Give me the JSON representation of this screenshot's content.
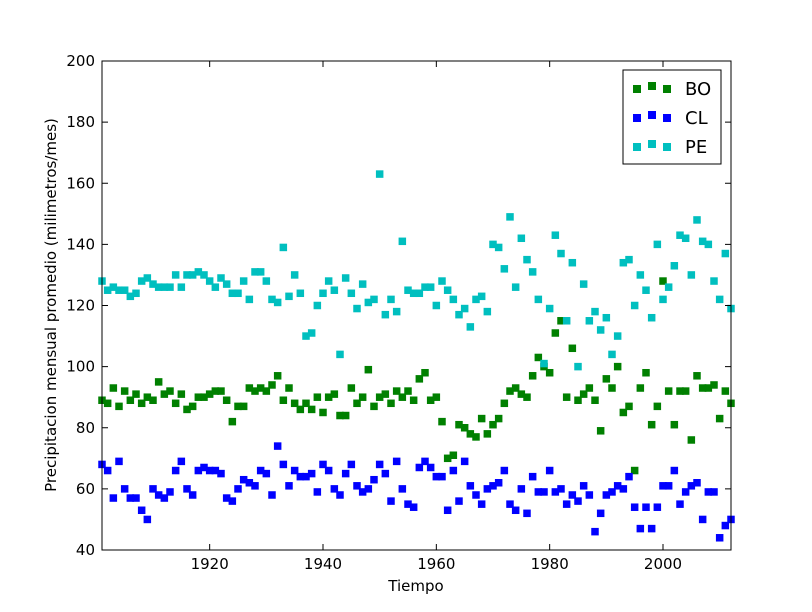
{
  "chart_data": {
    "type": "scatter",
    "xlabel": "Tiempo",
    "ylabel": "Precipitacion mensual promedio (milimetros/mes)",
    "xlim": [
      1901,
      2012
    ],
    "ylim": [
      40,
      200
    ],
    "xticks": [
      1920,
      1940,
      1960,
      1980,
      2000
    ],
    "yticks": [
      40,
      60,
      80,
      100,
      120,
      140,
      160,
      180,
      200
    ],
    "grid": false,
    "legend_position": "top-right",
    "x_start": 1901,
    "series": [
      {
        "name": "BO",
        "color": "#008000",
        "values": [
          89,
          88,
          93,
          87,
          92,
          89,
          91,
          88,
          90,
          89,
          95,
          91,
          92,
          88,
          91,
          86,
          87,
          90,
          90,
          91,
          92,
          92,
          89,
          82,
          87,
          87,
          93,
          92,
          93,
          92,
          94,
          97,
          89,
          93,
          88,
          86,
          88,
          86,
          90,
          85,
          90,
          91,
          84,
          84,
          93,
          88,
          90,
          99,
          87,
          90,
          91,
          88,
          92,
          90,
          92,
          89,
          96,
          98,
          89,
          90,
          82,
          70,
          71,
          81,
          80,
          78,
          77,
          83,
          78,
          81,
          83,
          88,
          92,
          93,
          91,
          90,
          97,
          103,
          100,
          98,
          111,
          115,
          90,
          106,
          89,
          91,
          93,
          89,
          79,
          96,
          93,
          100,
          85,
          87,
          66,
          93,
          98,
          81,
          87,
          128,
          92,
          81,
          92,
          92,
          76,
          97,
          93,
          93,
          94,
          83,
          92,
          88
        ]
      },
      {
        "name": "CL",
        "color": "#0000ff",
        "values": [
          68,
          66,
          57,
          69,
          60,
          57,
          57,
          53,
          50,
          60,
          58,
          57,
          59,
          66,
          69,
          60,
          58,
          66,
          67,
          66,
          66,
          65,
          57,
          56,
          60,
          63,
          62,
          61,
          66,
          65,
          58,
          74,
          68,
          61,
          66,
          64,
          64,
          65,
          59,
          68,
          66,
          60,
          58,
          65,
          68,
          61,
          59,
          60,
          63,
          68,
          65,
          56,
          69,
          60,
          55,
          54,
          67,
          69,
          67,
          64,
          64,
          53,
          66,
          56,
          69,
          61,
          58,
          55,
          60,
          61,
          62,
          66,
          55,
          53,
          60,
          52,
          64,
          59,
          59,
          66,
          59,
          60,
          55,
          58,
          56,
          61,
          58,
          46,
          52,
          58,
          59,
          61,
          60,
          64,
          54,
          47,
          54,
          47,
          54,
          61,
          61,
          66,
          55,
          59,
          61,
          62,
          50,
          59,
          59,
          44,
          48,
          50
        ]
      },
      {
        "name": "PE",
        "color": "#00bfbf",
        "values": [
          128,
          125,
          126,
          125,
          125,
          123,
          124,
          128,
          129,
          127,
          126,
          126,
          126,
          130,
          126,
          130,
          130,
          131,
          130,
          128,
          126,
          129,
          127,
          124,
          124,
          128,
          122,
          131,
          131,
          128,
          122,
          121,
          139,
          123,
          130,
          124,
          110,
          111,
          120,
          124,
          128,
          125,
          104,
          129,
          124,
          119,
          127,
          121,
          122,
          163,
          117,
          122,
          118,
          141,
          125,
          124,
          124,
          126,
          126,
          120,
          128,
          125,
          122,
          117,
          119,
          113,
          122,
          123,
          118,
          140,
          139,
          132,
          149,
          126,
          142,
          135,
          131,
          122,
          101,
          119,
          143,
          137,
          115,
          134,
          100,
          127,
          115,
          118,
          112,
          116,
          104,
          110,
          134,
          135,
          120,
          130,
          125,
          116,
          140,
          122,
          126,
          133,
          143,
          142,
          130,
          148,
          141,
          140,
          128,
          122,
          137,
          119
        ]
      }
    ]
  }
}
